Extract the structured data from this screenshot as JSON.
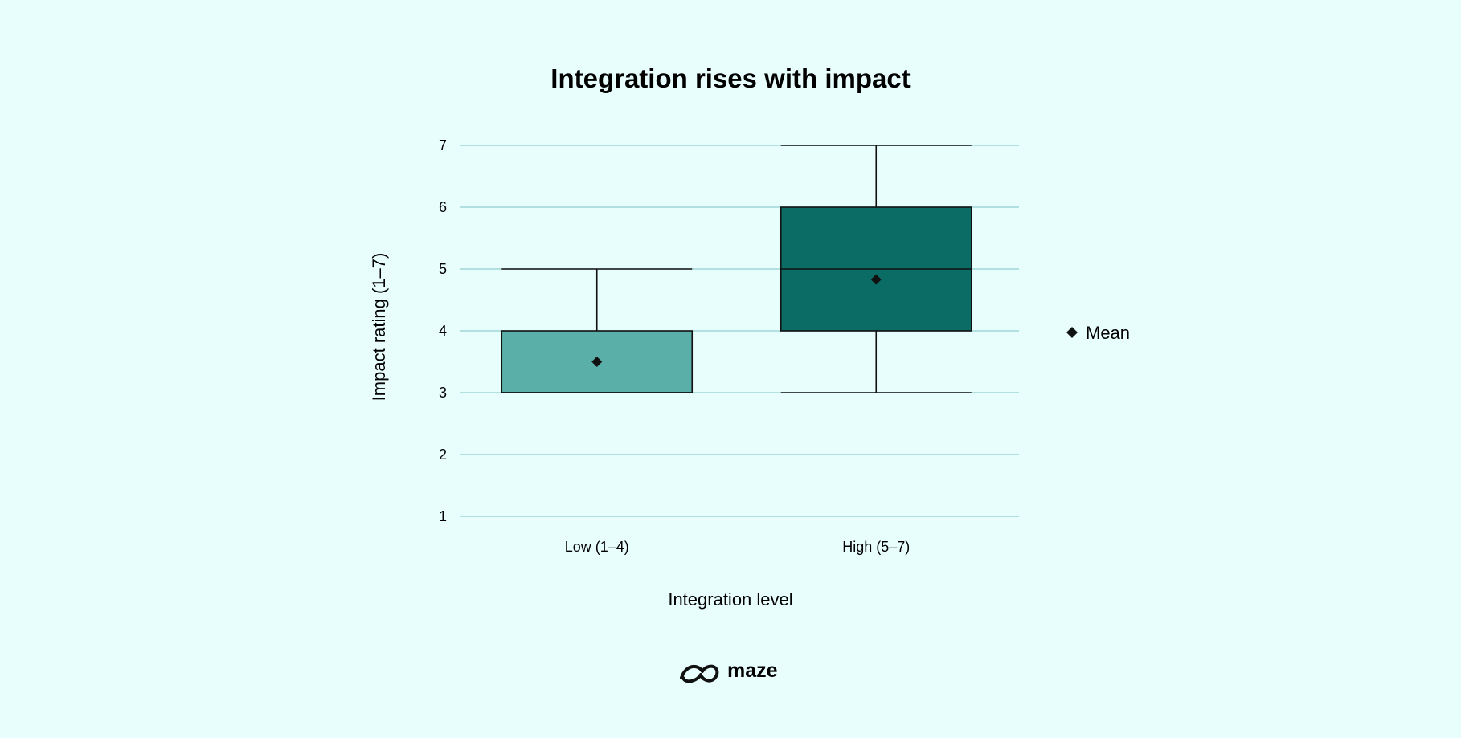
{
  "chart_data": {
    "type": "box",
    "title": "Integration rises with impact",
    "xlabel": "Integration level",
    "ylabel": "Impact rating (1–7)",
    "ylim": [
      1,
      7
    ],
    "yticks": [
      1,
      2,
      3,
      4,
      5,
      6,
      7
    ],
    "grid": true,
    "legend": {
      "position": "right",
      "entries": [
        {
          "label": "Mean",
          "marker": "diamond"
        }
      ]
    },
    "categories": [
      "Low (1–4)",
      "High (5–7)"
    ],
    "boxes": [
      {
        "category": "Low (1–4)",
        "whisker_low": 3,
        "q1": 3,
        "median": 3,
        "q3": 4,
        "whisker_high": 5,
        "mean": 3.5,
        "color": "#5aafa9"
      },
      {
        "category": "High (5–7)",
        "whisker_low": 3,
        "q1": 4,
        "median": 5,
        "q3": 6,
        "whisker_high": 7,
        "mean": 4.83,
        "color": "#0b6b65"
      }
    ],
    "colors": {
      "background": "#e8fefd",
      "grid": "#8fcfd0",
      "stroke": "#111111"
    }
  },
  "brand": {
    "logo_text": "maze"
  }
}
